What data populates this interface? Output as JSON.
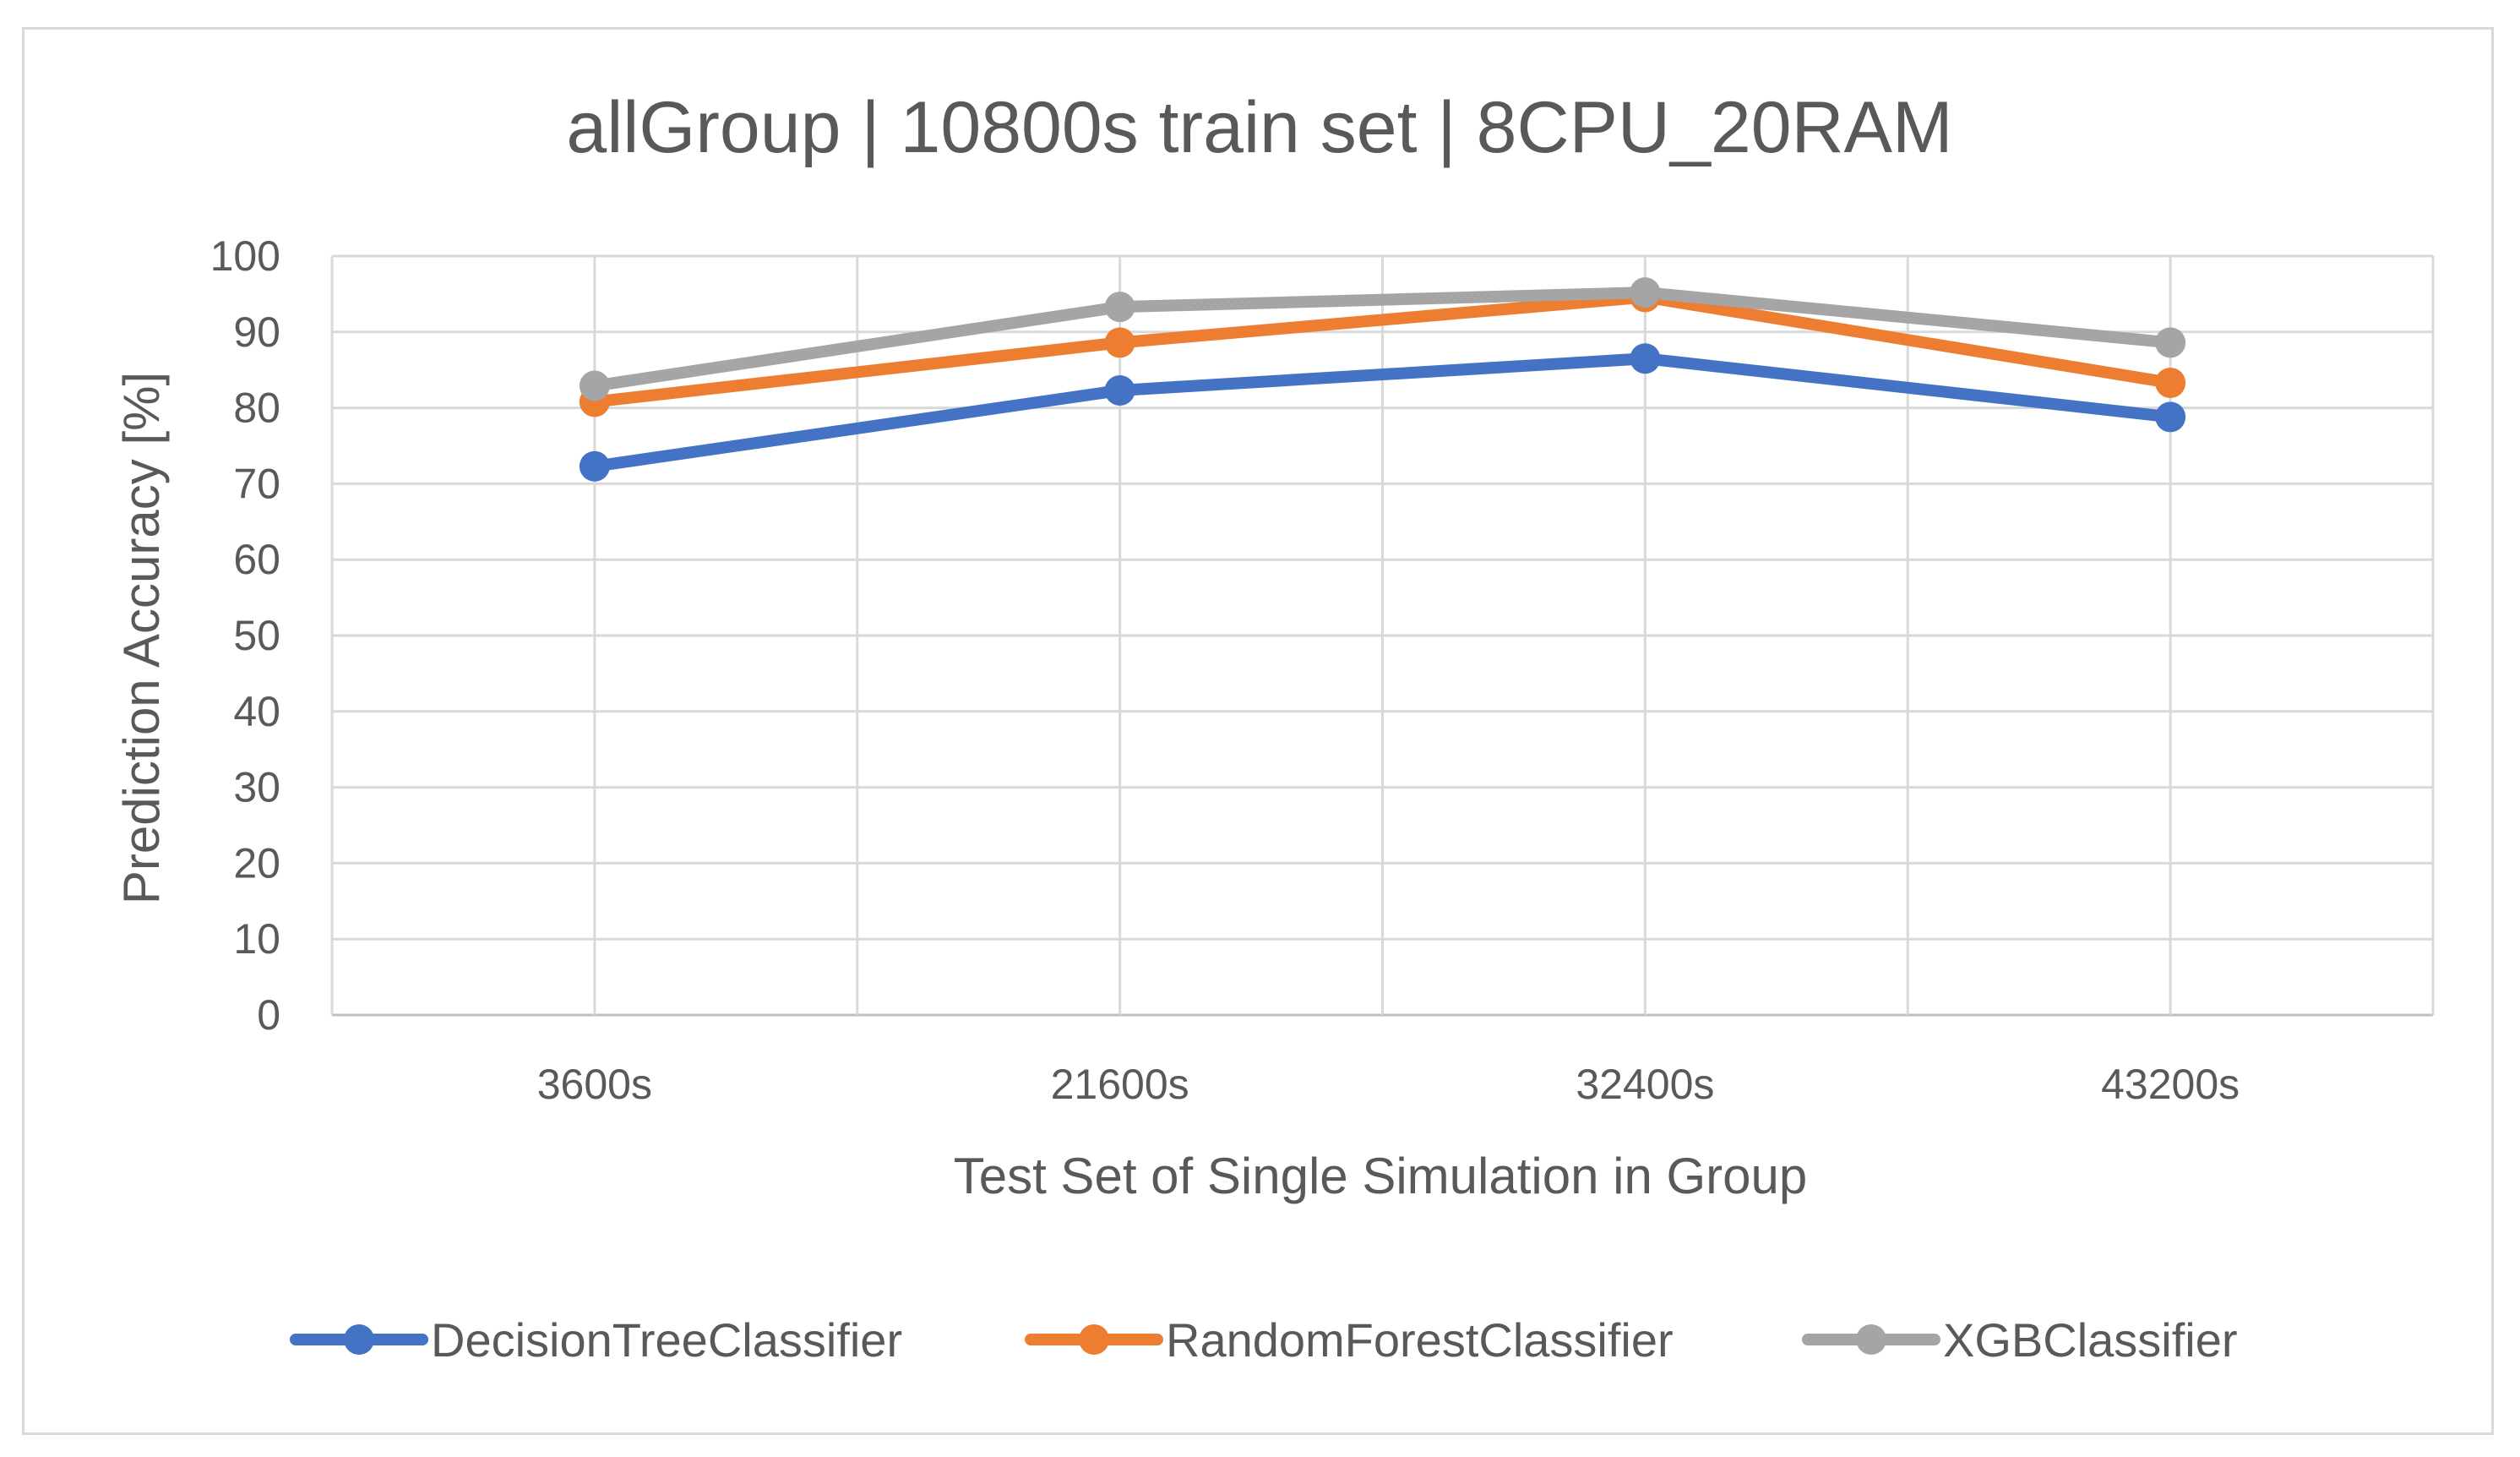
{
  "chart_data": {
    "type": "line",
    "title": "allGroup | 10800s train set | 8CPU_20RAM",
    "xlabel": "Test Set of Single Simulation in Group",
    "ylabel": "Prediction Accuracy [%]",
    "categories": [
      "3600s",
      "21600s",
      "32400s",
      "43200s"
    ],
    "ylim": [
      0,
      100
    ],
    "yticks": [
      0,
      10,
      20,
      30,
      40,
      50,
      60,
      70,
      80,
      90,
      100
    ],
    "grid": true,
    "legend_position": "bottom",
    "series": [
      {
        "name": "DecisionTreeClassifier",
        "color": "#4472c4",
        "values": [
          72.3,
          82.3,
          86.5,
          78.8
        ]
      },
      {
        "name": "RandomForestClassifier",
        "color": "#ed7d31",
        "values": [
          80.8,
          88.6,
          94.6,
          83.3
        ]
      },
      {
        "name": "XGBClassifier",
        "color": "#a5a5a5",
        "values": [
          82.9,
          93.3,
          95.2,
          88.6
        ]
      }
    ]
  }
}
